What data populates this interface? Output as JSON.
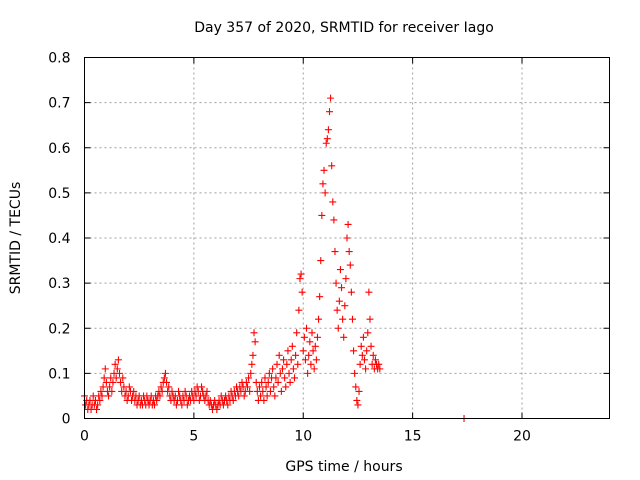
{
  "chart_data": {
    "type": "scatter",
    "title": "Day 357 of 2020, SRMTID for receiver Iago",
    "xlabel": "GPS time / hours",
    "ylabel": "SRMTID / TECUs",
    "xlim": [
      0,
      24
    ],
    "ylim": [
      0,
      0.8
    ],
    "x_ticks": [
      0,
      5,
      10,
      15,
      20
    ],
    "x_tick_labels": [
      "0",
      "5",
      "10",
      "15",
      "20"
    ],
    "y_ticks": [
      0,
      0.1,
      0.2,
      0.3,
      0.4,
      0.5,
      0.6,
      0.7,
      0.8
    ],
    "y_tick_labels": [
      "0",
      "0.1",
      "0.2",
      "0.3",
      "0.4",
      "0.5",
      "0.6",
      "0.7",
      "0.8"
    ],
    "grid": true,
    "marker": "plus",
    "color": "#ff0000",
    "series": [
      {
        "name": "SRMTID",
        "points": [
          [
            0.0,
            0.05
          ],
          [
            0.05,
            0.03
          ],
          [
            0.1,
            0.04
          ],
          [
            0.15,
            0.02
          ],
          [
            0.2,
            0.03
          ],
          [
            0.25,
            0.04
          ],
          [
            0.3,
            0.02
          ],
          [
            0.35,
            0.03
          ],
          [
            0.4,
            0.05
          ],
          [
            0.45,
            0.03
          ],
          [
            0.5,
            0.04
          ],
          [
            0.55,
            0.02
          ],
          [
            0.6,
            0.03
          ],
          [
            0.65,
            0.05
          ],
          [
            0.7,
            0.04
          ],
          [
            0.75,
            0.06
          ],
          [
            0.8,
            0.05
          ],
          [
            0.85,
            0.07
          ],
          [
            0.9,
            0.09
          ],
          [
            0.95,
            0.11
          ],
          [
            1.0,
            0.08
          ],
          [
            1.05,
            0.06
          ],
          [
            1.1,
            0.05
          ],
          [
            1.15,
            0.07
          ],
          [
            1.2,
            0.09
          ],
          [
            1.25,
            0.06
          ],
          [
            1.3,
            0.08
          ],
          [
            1.35,
            0.1
          ],
          [
            1.4,
            0.12
          ],
          [
            1.45,
            0.09
          ],
          [
            1.5,
            0.11
          ],
          [
            1.55,
            0.13
          ],
          [
            1.6,
            0.1
          ],
          [
            1.65,
            0.08
          ],
          [
            1.7,
            0.06
          ],
          [
            1.75,
            0.09
          ],
          [
            1.8,
            0.07
          ],
          [
            1.85,
            0.05
          ],
          [
            1.9,
            0.06
          ],
          [
            1.95,
            0.04
          ],
          [
            2.0,
            0.05
          ],
          [
            2.05,
            0.07
          ],
          [
            2.1,
            0.06
          ],
          [
            2.15,
            0.04
          ],
          [
            2.2,
            0.05
          ],
          [
            2.25,
            0.06
          ],
          [
            2.3,
            0.04
          ],
          [
            2.35,
            0.05
          ],
          [
            2.4,
            0.03
          ],
          [
            2.45,
            0.04
          ],
          [
            2.5,
            0.05
          ],
          [
            2.55,
            0.03
          ],
          [
            2.6,
            0.04
          ],
          [
            2.65,
            0.03
          ],
          [
            2.7,
            0.05
          ],
          [
            2.75,
            0.04
          ],
          [
            2.8,
            0.03
          ],
          [
            2.85,
            0.05
          ],
          [
            2.9,
            0.04
          ],
          [
            2.95,
            0.03
          ],
          [
            3.0,
            0.04
          ],
          [
            3.05,
            0.05
          ],
          [
            3.1,
            0.03
          ],
          [
            3.15,
            0.04
          ],
          [
            3.2,
            0.03
          ],
          [
            3.25,
            0.05
          ],
          [
            3.3,
            0.04
          ],
          [
            3.35,
            0.05
          ],
          [
            3.4,
            0.06
          ],
          [
            3.45,
            0.05
          ],
          [
            3.5,
            0.07
          ],
          [
            3.55,
            0.06
          ],
          [
            3.6,
            0.08
          ],
          [
            3.65,
            0.09
          ],
          [
            3.7,
            0.1
          ],
          [
            3.75,
            0.08
          ],
          [
            3.8,
            0.06
          ],
          [
            3.85,
            0.07
          ],
          [
            3.9,
            0.05
          ],
          [
            3.95,
            0.04
          ],
          [
            4.0,
            0.06
          ],
          [
            4.05,
            0.05
          ],
          [
            4.1,
            0.04
          ],
          [
            4.15,
            0.05
          ],
          [
            4.2,
            0.03
          ],
          [
            4.25,
            0.04
          ],
          [
            4.3,
            0.06
          ],
          [
            4.35,
            0.05
          ],
          [
            4.4,
            0.04
          ],
          [
            4.45,
            0.03
          ],
          [
            4.5,
            0.05
          ],
          [
            4.55,
            0.04
          ],
          [
            4.6,
            0.06
          ],
          [
            4.65,
            0.05
          ],
          [
            4.7,
            0.03
          ],
          [
            4.75,
            0.04
          ],
          [
            4.8,
            0.05
          ],
          [
            4.85,
            0.04
          ],
          [
            4.9,
            0.06
          ],
          [
            4.95,
            0.05
          ],
          [
            5.0,
            0.04
          ],
          [
            5.05,
            0.06
          ],
          [
            5.1,
            0.05
          ],
          [
            5.15,
            0.07
          ],
          [
            5.2,
            0.06
          ],
          [
            5.25,
            0.04
          ],
          [
            5.3,
            0.05
          ],
          [
            5.35,
            0.07
          ],
          [
            5.4,
            0.06
          ],
          [
            5.45,
            0.05
          ],
          [
            5.5,
            0.04
          ],
          [
            5.55,
            0.05
          ],
          [
            5.6,
            0.06
          ],
          [
            5.65,
            0.04
          ],
          [
            5.7,
            0.03
          ],
          [
            5.75,
            0.04
          ],
          [
            5.8,
            0.03
          ],
          [
            5.85,
            0.02
          ],
          [
            5.9,
            0.03
          ],
          [
            5.95,
            0.04
          ],
          [
            6.0,
            0.03
          ],
          [
            6.05,
            0.02
          ],
          [
            6.1,
            0.03
          ],
          [
            6.15,
            0.04
          ],
          [
            6.2,
            0.03
          ],
          [
            6.25,
            0.05
          ],
          [
            6.3,
            0.04
          ],
          [
            6.35,
            0.03
          ],
          [
            6.4,
            0.04
          ],
          [
            6.45,
            0.05
          ],
          [
            6.5,
            0.04
          ],
          [
            6.55,
            0.03
          ],
          [
            6.6,
            0.05
          ],
          [
            6.65,
            0.04
          ],
          [
            6.7,
            0.06
          ],
          [
            6.75,
            0.05
          ],
          [
            6.8,
            0.04
          ],
          [
            6.85,
            0.06
          ],
          [
            6.9,
            0.05
          ],
          [
            6.95,
            0.07
          ],
          [
            7.0,
            0.06
          ],
          [
            7.05,
            0.05
          ],
          [
            7.1,
            0.07
          ],
          [
            7.15,
            0.06
          ],
          [
            7.2,
            0.08
          ],
          [
            7.25,
            0.07
          ],
          [
            7.3,
            0.05
          ],
          [
            7.35,
            0.06
          ],
          [
            7.4,
            0.08
          ],
          [
            7.45,
            0.07
          ],
          [
            7.5,
            0.09
          ],
          [
            7.55,
            0.06
          ],
          [
            7.6,
            0.1
          ],
          [
            7.65,
            0.12
          ],
          [
            7.7,
            0.14
          ],
          [
            7.75,
            0.19
          ],
          [
            7.8,
            0.17
          ],
          [
            7.85,
            0.08
          ],
          [
            7.9,
            0.06
          ],
          [
            7.95,
            0.04
          ],
          [
            8.0,
            0.07
          ],
          [
            8.05,
            0.05
          ],
          [
            8.1,
            0.08
          ],
          [
            8.15,
            0.06
          ],
          [
            8.2,
            0.04
          ],
          [
            8.25,
            0.09
          ],
          [
            8.3,
            0.07
          ],
          [
            8.35,
            0.05
          ],
          [
            8.4,
            0.08
          ],
          [
            8.45,
            0.1
          ],
          [
            8.5,
            0.06
          ],
          [
            8.55,
            0.09
          ],
          [
            8.6,
            0.11
          ],
          [
            8.65,
            0.07
          ],
          [
            8.7,
            0.05
          ],
          [
            8.75,
            0.09
          ],
          [
            8.8,
            0.12
          ],
          [
            8.85,
            0.08
          ],
          [
            8.9,
            0.14
          ],
          [
            8.95,
            0.1
          ],
          [
            9.0,
            0.06
          ],
          [
            9.05,
            0.11
          ],
          [
            9.1,
            0.13
          ],
          [
            9.15,
            0.09
          ],
          [
            9.2,
            0.07
          ],
          [
            9.25,
            0.12
          ],
          [
            9.3,
            0.15
          ],
          [
            9.35,
            0.1
          ],
          [
            9.4,
            0.08
          ],
          [
            9.45,
            0.13
          ],
          [
            9.5,
            0.16
          ],
          [
            9.55,
            0.11
          ],
          [
            9.6,
            0.09
          ],
          [
            9.65,
            0.14
          ],
          [
            9.7,
            0.19
          ],
          [
            9.75,
            0.12
          ],
          [
            9.8,
            0.24
          ],
          [
            9.85,
            0.31
          ],
          [
            9.9,
            0.32
          ],
          [
            9.95,
            0.28
          ],
          [
            10.0,
            0.15
          ],
          [
            10.05,
            0.18
          ],
          [
            10.1,
            0.13
          ],
          [
            10.15,
            0.2
          ],
          [
            10.2,
            0.1
          ],
          [
            10.25,
            0.14
          ],
          [
            10.3,
            0.17
          ],
          [
            10.35,
            0.12
          ],
          [
            10.4,
            0.19
          ],
          [
            10.45,
            0.15
          ],
          [
            10.5,
            0.11
          ],
          [
            10.55,
            0.16
          ],
          [
            10.6,
            0.13
          ],
          [
            10.65,
            0.18
          ],
          [
            10.7,
            0.22
          ],
          [
            10.75,
            0.27
          ],
          [
            10.8,
            0.35
          ],
          [
            10.85,
            0.45
          ],
          [
            10.9,
            0.52
          ],
          [
            10.95,
            0.55
          ],
          [
            11.0,
            0.5
          ],
          [
            11.05,
            0.61
          ],
          [
            11.1,
            0.62
          ],
          [
            11.15,
            0.64
          ],
          [
            11.2,
            0.68
          ],
          [
            11.25,
            0.71
          ],
          [
            11.3,
            0.56
          ],
          [
            11.35,
            0.48
          ],
          [
            11.4,
            0.44
          ],
          [
            11.45,
            0.37
          ],
          [
            11.5,
            0.3
          ],
          [
            11.55,
            0.24
          ],
          [
            11.6,
            0.2
          ],
          [
            11.65,
            0.26
          ],
          [
            11.7,
            0.33
          ],
          [
            11.75,
            0.29
          ],
          [
            11.8,
            0.22
          ],
          [
            11.85,
            0.18
          ],
          [
            11.9,
            0.25
          ],
          [
            11.95,
            0.31
          ],
          [
            12.0,
            0.4
          ],
          [
            12.05,
            0.43
          ],
          [
            12.1,
            0.37
          ],
          [
            12.15,
            0.34
          ],
          [
            12.2,
            0.28
          ],
          [
            12.25,
            0.22
          ],
          [
            12.3,
            0.15
          ],
          [
            12.35,
            0.1
          ],
          [
            12.4,
            0.07
          ],
          [
            12.45,
            0.04
          ],
          [
            12.5,
            0.03
          ],
          [
            12.55,
            0.06
          ],
          [
            12.6,
            0.12
          ],
          [
            12.65,
            0.16
          ],
          [
            12.7,
            0.14
          ],
          [
            12.75,
            0.18
          ],
          [
            12.8,
            0.13
          ],
          [
            12.85,
            0.11
          ],
          [
            12.9,
            0.15
          ],
          [
            12.95,
            0.19
          ],
          [
            13.0,
            0.28
          ],
          [
            13.05,
            0.22
          ],
          [
            13.1,
            0.16
          ],
          [
            13.15,
            0.12
          ],
          [
            13.2,
            0.14
          ],
          [
            13.25,
            0.11
          ],
          [
            13.3,
            0.13
          ],
          [
            13.35,
            0.12
          ],
          [
            13.4,
            0.11
          ],
          [
            13.45,
            0.12
          ],
          [
            13.5,
            0.11
          ],
          [
            17.35,
            0.0
          ]
        ]
      }
    ]
  }
}
